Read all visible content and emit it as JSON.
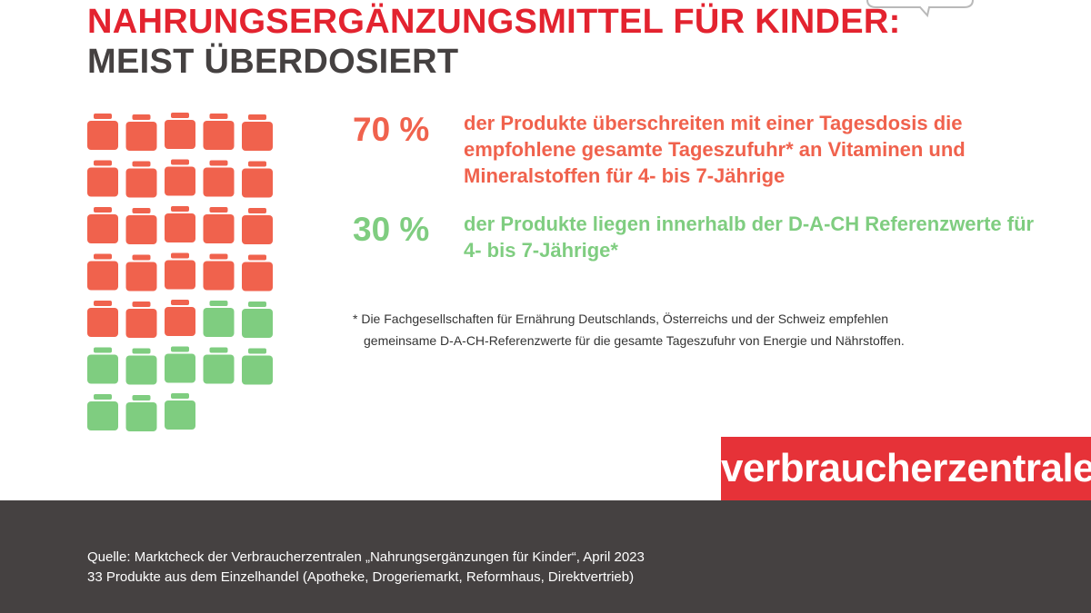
{
  "header": {
    "title_line1": "NAHRUNGSERGÄNZUNGSMITTEL FÜR KINDER:",
    "title_line2": "MEIST ÜBERDOSIERT"
  },
  "colors": {
    "over": "#f0624d",
    "within": "#7fcd80",
    "brand_red": "#e63238",
    "footer_bg": "#454141",
    "title_red": "#e3232f"
  },
  "stats": {
    "over": {
      "percent": "70 %",
      "text": "der Produkte überschreiten mit einer Tagesdosis die empfohlene gesamte Tageszufuhr* an Vitaminen und Mineralstoffen für 4- bis 7-Jährige"
    },
    "within": {
      "percent": "30 %",
      "text": "der Produkte liegen innerhalb der D-A-CH Referenzwerte für 4- bis 7-Jährige*"
    }
  },
  "footnote": {
    "line1": "* Die Fachgesellschaften für Ernährung Deutschlands, Österreichs und der Schweiz empfehlen",
    "line2": "gemeinsame D-A-CH-Referenzwerte für die gesamte Tageszufuhr von Energie und Nährstoffen."
  },
  "brand": {
    "label": "verbraucherzentrale"
  },
  "source": {
    "line1": "Quelle: Marktcheck der Verbraucherzentralen „Nahrungsergänzungen für Kinder“, April 2023",
    "line2": "33 Produkte aus dem Einzelhandel (Apotheke, Drogeriemarkt, Reformhaus, Direktvertrieb)"
  },
  "chart_data": {
    "type": "pictogram",
    "total": 33,
    "per_row": 5,
    "series": [
      {
        "name": "70 %",
        "count": 23,
        "color": "#f0624d"
      },
      {
        "name": "30 %",
        "count": 10,
        "color": "#7fcd80"
      }
    ]
  }
}
